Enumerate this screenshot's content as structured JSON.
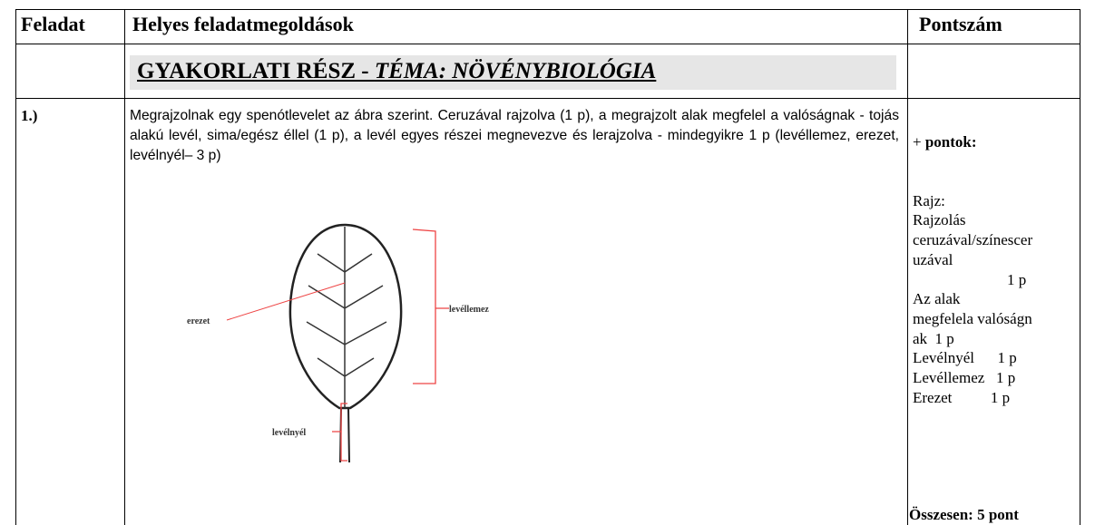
{
  "header": {
    "col1": "Feladat",
    "col2": "Helyes feladatmegoldások",
    "col3": "Pontszám"
  },
  "section": {
    "title_plain": "GYAKORLATI RÉSZ - ",
    "title_italic": "TÉMA: NÖVÉNYBIOLÓGIA"
  },
  "task": {
    "number": "1.)",
    "description": "Megrajzolnak egy spenótlevelet az ábra szerint. Ceruzával rajzolva (1 p), a megrajzolt alak megfelel a valóságnak - tojás alakú levél, sima/egész éllel (1 p), a levél egyes részei megnevezve és lerajzolva - mindegyikre 1 p (levéllemez, erezet, levélnyél– 3 p)",
    "figure": {
      "label_erezet": "erezet",
      "label_levellemez": "levéllemez",
      "label_levelnyel": "levélnyél"
    },
    "points": {
      "sign": "+",
      "heading": "pontok:",
      "lines": [
        "Rajz:",
        "Rajzolás",
        "ceruzával/színescer",
        "uzával",
        "1 p",
        "Az alak",
        "megfelela valóságn",
        "ak  1 p",
        "Levélnyél      1 p",
        "Levéllemez   1 p",
        "Erezet          1 p"
      ],
      "total": "Összesen: 5 pont"
    }
  }
}
